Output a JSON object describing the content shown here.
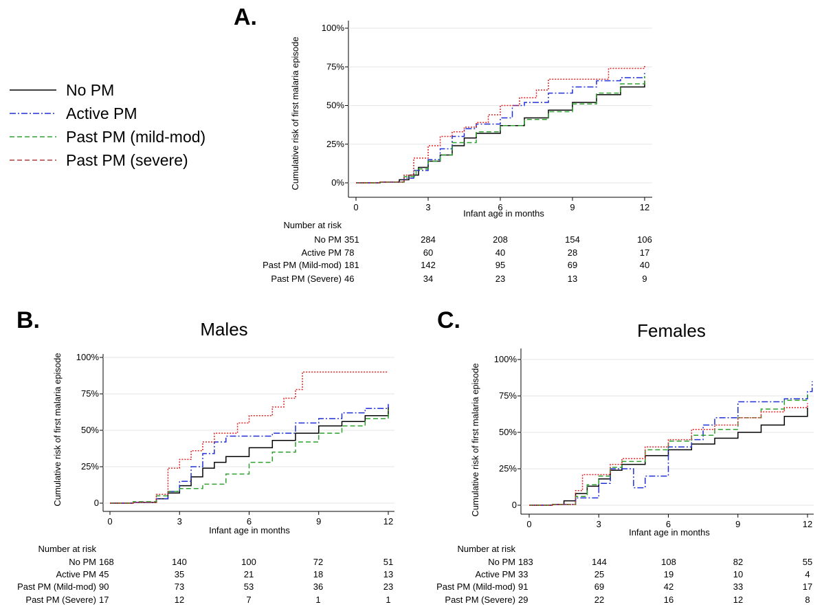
{
  "legend": [
    {
      "label": "No PM",
      "color": "#000000",
      "dash": "solid"
    },
    {
      "label": "Active PM",
      "color": "#1f2fd6",
      "dash": "dashdot"
    },
    {
      "label": "Past PM (mild-mod)",
      "color": "#2ca02c",
      "dash": "dashed"
    },
    {
      "label": "Past PM (severe)",
      "color": "#b03a3a",
      "dash": "dashed"
    }
  ],
  "chart_data": [
    {
      "type": "line",
      "panel": "A.",
      "title": "",
      "xlabel": "Infant age in months",
      "ylabel": "Cumulative risk of first malaria episode",
      "xlim": [
        0,
        12
      ],
      "ylim": [
        0,
        1
      ],
      "xticks": [
        0,
        3,
        6,
        9,
        12
      ],
      "yticks": [
        {
          "v": 0,
          "label": "0%"
        },
        {
          "v": 0.25,
          "label": "25%"
        },
        {
          "v": 0.5,
          "label": "50%"
        },
        {
          "v": 0.75,
          "label": "75%"
        },
        {
          "v": 1,
          "label": "100%"
        }
      ],
      "grid": true,
      "series": [
        {
          "name": "No PM",
          "color": "#000000",
          "dash": "solid",
          "x": [
            0,
            1,
            1.8,
            2.2,
            2.6,
            3,
            3.5,
            4,
            4.5,
            5,
            6,
            7,
            8,
            9,
            10,
            11,
            12
          ],
          "y": [
            0,
            0.005,
            0.02,
            0.05,
            0.1,
            0.14,
            0.18,
            0.24,
            0.29,
            0.32,
            0.37,
            0.42,
            0.47,
            0.52,
            0.57,
            0.62,
            0.66
          ]
        },
        {
          "name": "Active PM",
          "color": "#1f2fd6",
          "dash": "dashdot",
          "x": [
            0,
            1,
            2,
            2.4,
            3,
            3.5,
            4,
            4.5,
            5,
            6,
            6.5,
            7,
            8,
            9,
            10,
            11,
            12
          ],
          "y": [
            0,
            0.005,
            0.03,
            0.08,
            0.15,
            0.22,
            0.3,
            0.35,
            0.38,
            0.42,
            0.5,
            0.52,
            0.58,
            0.62,
            0.66,
            0.68,
            0.71
          ]
        },
        {
          "name": "Past PM (mild-mod)",
          "color": "#2ca02c",
          "dash": "dashed",
          "x": [
            0,
            1,
            2,
            2.5,
            3,
            3.5,
            4,
            5,
            6,
            7,
            8,
            9,
            10,
            11,
            12
          ],
          "y": [
            0,
            0.005,
            0.04,
            0.09,
            0.14,
            0.18,
            0.26,
            0.33,
            0.37,
            0.41,
            0.46,
            0.51,
            0.58,
            0.64,
            0.69
          ]
        },
        {
          "name": "Past PM (severe)",
          "color": "#e02020",
          "dash": "dotted",
          "x": [
            0,
            1,
            2,
            2.4,
            3,
            3.5,
            4,
            4.5,
            5,
            5.5,
            6,
            6.8,
            7.5,
            8,
            9,
            9.5,
            10.5,
            11,
            12
          ],
          "y": [
            0,
            0.005,
            0.05,
            0.16,
            0.24,
            0.3,
            0.33,
            0.36,
            0.39,
            0.44,
            0.5,
            0.55,
            0.6,
            0.67,
            0.67,
            0.67,
            0.74,
            0.74,
            0.76
          ]
        }
      ],
      "risk_table": {
        "heading": "Number at risk",
        "rows": [
          {
            "label": "No PM",
            "values": [
              "351",
              "284",
              "208",
              "154",
              "106"
            ]
          },
          {
            "label": "Active PM",
            "values": [
              "78",
              "60",
              "40",
              "28",
              "17"
            ]
          },
          {
            "label": "Past PM (Mild-mod)",
            "values": [
              "181",
              "142",
              "95",
              "69",
              "40"
            ]
          },
          {
            "label": "Past PM (Severe)",
            "values": [
              "46",
              "34",
              "23",
              "13",
              "9"
            ]
          }
        ]
      }
    },
    {
      "type": "line",
      "panel": "B.",
      "title": "Males",
      "xlabel": "Infant age in months",
      "ylabel": "Cumulative risk of first malaria episode",
      "xlim": [
        0,
        12
      ],
      "ylim": [
        0,
        1
      ],
      "xticks": [
        0,
        3,
        6,
        9,
        12
      ],
      "yticks": [
        {
          "v": 0,
          "label": "0"
        },
        {
          "v": 0.25,
          "label": "25%"
        },
        {
          "v": 0.5,
          "label": "50%"
        },
        {
          "v": 0.75,
          "label": "75%"
        },
        {
          "v": 1,
          "label": "100%"
        }
      ],
      "grid": true,
      "series": [
        {
          "name": "No PM",
          "color": "#000000",
          "dash": "solid",
          "x": [
            0,
            1,
            2,
            2.5,
            3,
            3.5,
            4,
            4.5,
            5,
            6,
            7,
            8,
            9,
            10,
            11,
            12
          ],
          "y": [
            0,
            0.005,
            0.03,
            0.07,
            0.12,
            0.18,
            0.24,
            0.28,
            0.32,
            0.38,
            0.43,
            0.48,
            0.53,
            0.56,
            0.6,
            0.66
          ]
        },
        {
          "name": "Active PM",
          "color": "#1f2fd6",
          "dash": "dashdot",
          "x": [
            0,
            1,
            2,
            2.5,
            3,
            3.5,
            4,
            4.5,
            5,
            5.5,
            7,
            8,
            9,
            10,
            11,
            12
          ],
          "y": [
            0,
            0.005,
            0.03,
            0.08,
            0.15,
            0.25,
            0.34,
            0.42,
            0.46,
            0.46,
            0.48,
            0.55,
            0.58,
            0.62,
            0.65,
            0.68
          ]
        },
        {
          "name": "Past PM (mild-mod)",
          "color": "#2ca02c",
          "dash": "dashed",
          "x": [
            0,
            1,
            2,
            2.5,
            3,
            4,
            5,
            6,
            7,
            8,
            9,
            10,
            11,
            12
          ],
          "y": [
            0,
            0.01,
            0.05,
            0.08,
            0.1,
            0.13,
            0.2,
            0.28,
            0.35,
            0.42,
            0.48,
            0.53,
            0.58,
            0.64
          ]
        },
        {
          "name": "Past PM (severe)",
          "color": "#e02020",
          "dash": "dotted",
          "x": [
            0,
            1,
            2,
            2.5,
            3,
            3.5,
            4,
            4.5,
            5,
            5.5,
            6,
            6.5,
            7,
            7.5,
            8,
            8.3,
            12
          ],
          "y": [
            0,
            0.005,
            0.06,
            0.24,
            0.3,
            0.36,
            0.42,
            0.48,
            0.48,
            0.55,
            0.6,
            0.6,
            0.66,
            0.72,
            0.78,
            0.9,
            0.9
          ]
        }
      ],
      "risk_table": {
        "heading": "Number at risk",
        "rows": [
          {
            "label": "No PM",
            "values": [
              "168",
              "140",
              "100",
              "72",
              "51"
            ]
          },
          {
            "label": "Active PM",
            "values": [
              "45",
              "35",
              "21",
              "18",
              "13"
            ]
          },
          {
            "label": "Past PM (Mild-mod)",
            "values": [
              "90",
              "73",
              "53",
              "36",
              "23"
            ]
          },
          {
            "label": "Past PM (Severe)",
            "values": [
              "17",
              "12",
              "7",
              "1",
              "1"
            ]
          }
        ]
      }
    },
    {
      "type": "line",
      "panel": "C.",
      "title": "Females",
      "xlabel": "Infant age in months",
      "ylabel": "Cumulative risk of first malaria episode",
      "xlim": [
        0,
        12
      ],
      "ylim": [
        0,
        1
      ],
      "xticks": [
        0,
        3,
        6,
        9,
        12
      ],
      "yticks": [
        {
          "v": 0,
          "label": "0"
        },
        {
          "v": 0.25,
          "label": "25%"
        },
        {
          "v": 0.5,
          "label": "50%"
        },
        {
          "v": 0.75,
          "label": "75%"
        },
        {
          "v": 1,
          "label": "100%"
        }
      ],
      "grid": true,
      "series": [
        {
          "name": "No PM",
          "color": "#000000",
          "dash": "solid",
          "x": [
            0,
            1,
            1.5,
            2,
            2.5,
            3,
            3.5,
            4,
            5,
            6,
            7,
            8,
            9,
            10,
            11,
            12
          ],
          "y": [
            0,
            0.005,
            0.03,
            0.08,
            0.13,
            0.18,
            0.24,
            0.28,
            0.34,
            0.38,
            0.42,
            0.46,
            0.5,
            0.55,
            0.61,
            0.67
          ]
        },
        {
          "name": "Active PM",
          "color": "#1f2fd6",
          "dash": "dashdot",
          "x": [
            0,
            1,
            2,
            3,
            3.5,
            4,
            4.5,
            5,
            6,
            7,
            7.5,
            8,
            9,
            10,
            11,
            12,
            12.2
          ],
          "y": [
            0,
            0.005,
            0.05,
            0.15,
            0.25,
            0.25,
            0.12,
            0.2,
            0.4,
            0.45,
            0.55,
            0.6,
            0.71,
            0.71,
            0.73,
            0.78,
            0.85
          ]
        },
        {
          "name": "Past PM (mild-mod)",
          "color": "#2ca02c",
          "dash": "dashed",
          "x": [
            0,
            1,
            2,
            2.5,
            3,
            3.5,
            4,
            5,
            6,
            7,
            8,
            9,
            10,
            11,
            12
          ],
          "y": [
            0,
            0.005,
            0.06,
            0.14,
            0.2,
            0.26,
            0.3,
            0.38,
            0.44,
            0.48,
            0.52,
            0.6,
            0.66,
            0.72,
            0.76
          ]
        },
        {
          "name": "Past PM (severe)",
          "color": "#e02020",
          "dash": "dotted",
          "x": [
            0,
            1,
            2,
            2.3,
            3,
            3.5,
            4,
            5,
            6,
            7,
            8,
            9,
            10,
            11,
            12
          ],
          "y": [
            0,
            0.005,
            0.1,
            0.21,
            0.21,
            0.28,
            0.32,
            0.4,
            0.45,
            0.52,
            0.55,
            0.6,
            0.64,
            0.67,
            0.7
          ]
        }
      ],
      "risk_table": {
        "heading": "Number at risk",
        "rows": [
          {
            "label": "No PM",
            "values": [
              "183",
              "144",
              "108",
              "82",
              "55"
            ]
          },
          {
            "label": "Active PM",
            "values": [
              "33",
              "25",
              "19",
              "10",
              "4"
            ]
          },
          {
            "label": "Past PM (Mild-mod)",
            "values": [
              "91",
              "69",
              "42",
              "33",
              "17"
            ]
          },
          {
            "label": "Past PM (Severe)",
            "values": [
              "29",
              "22",
              "16",
              "12",
              "8"
            ]
          }
        ]
      }
    }
  ]
}
